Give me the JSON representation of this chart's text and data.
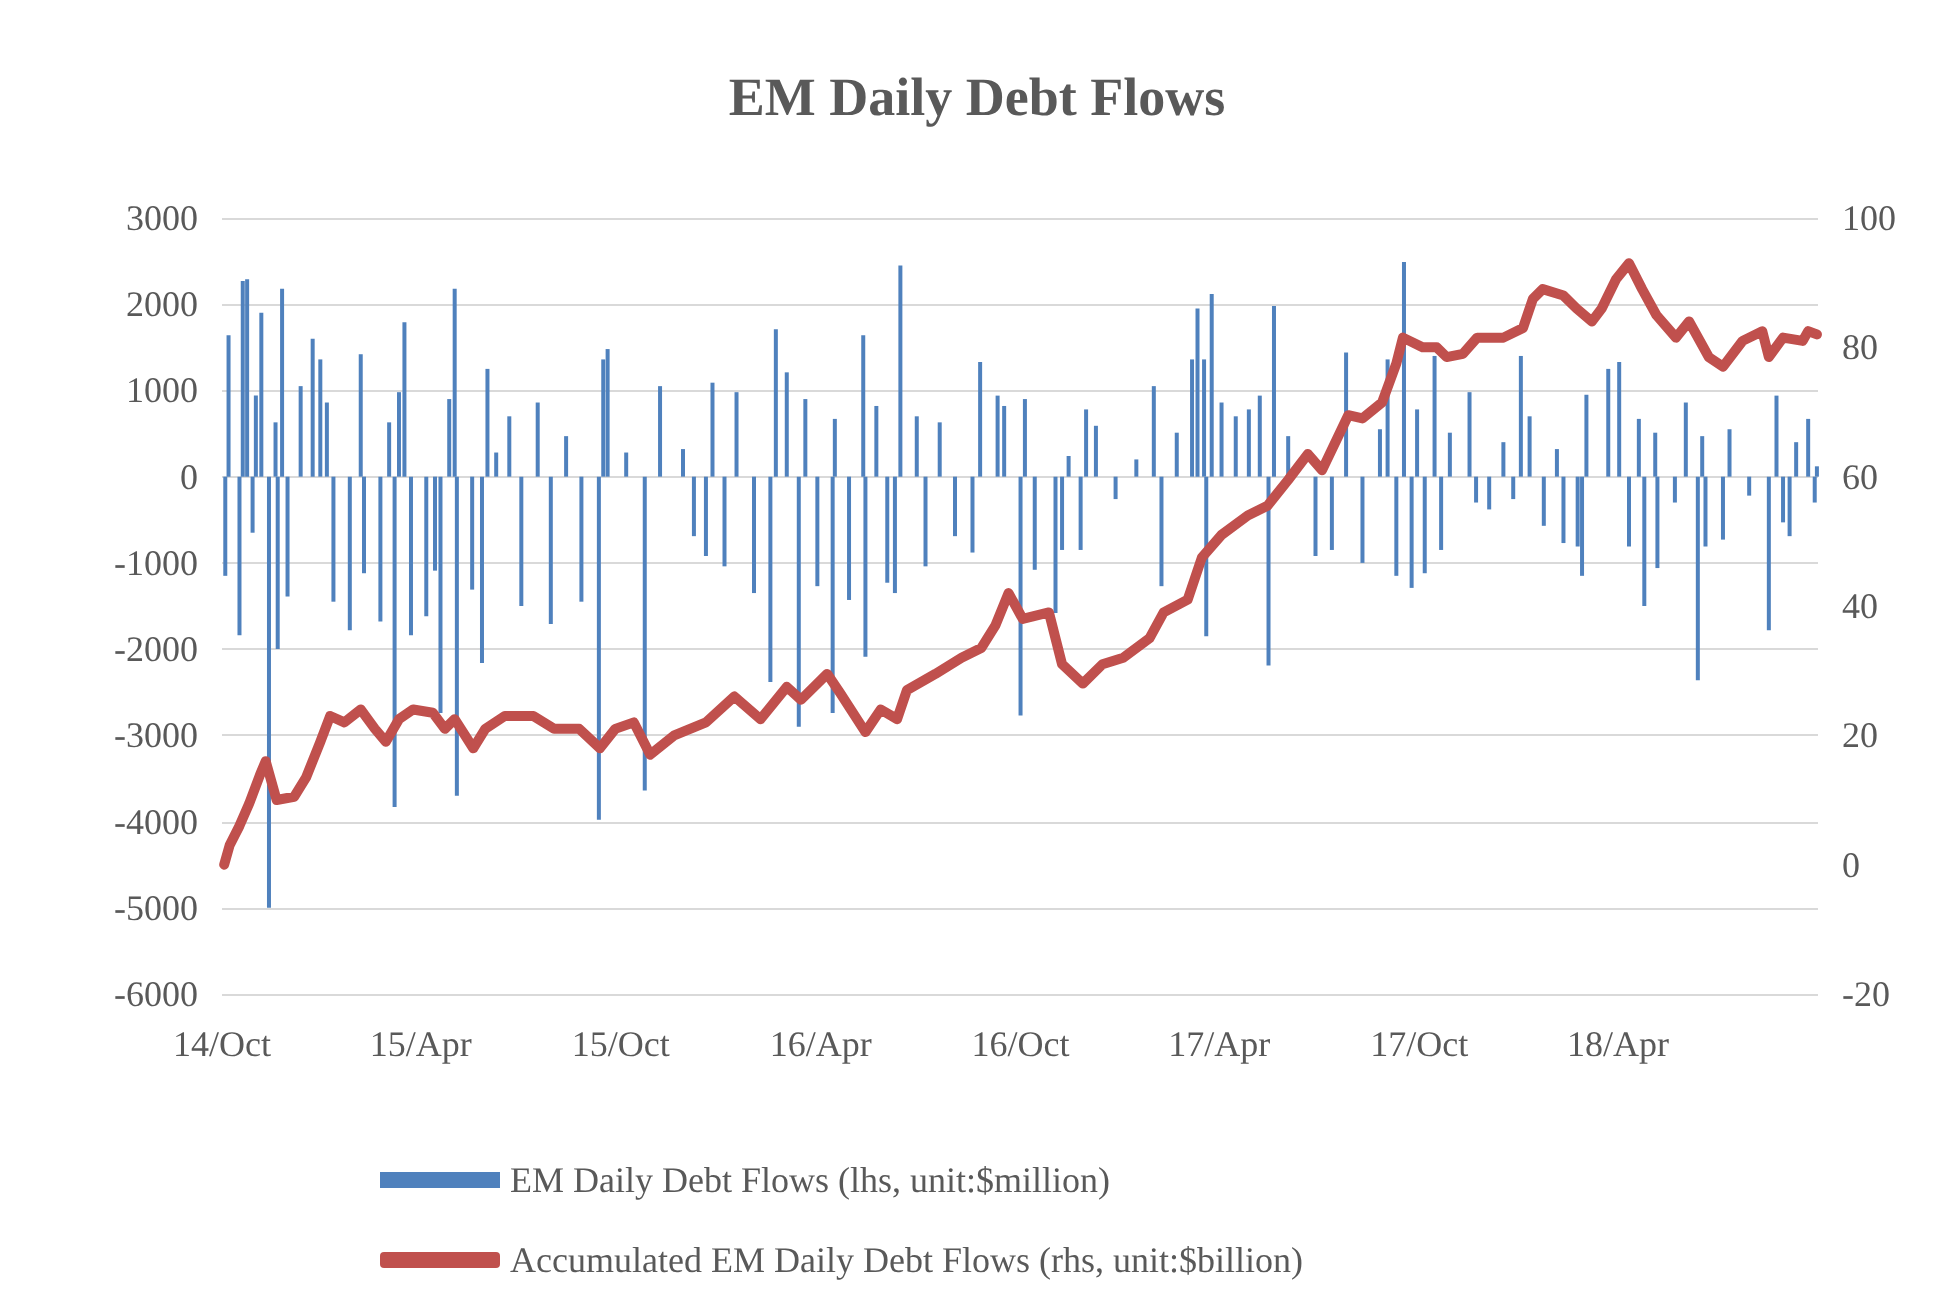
{
  "chart_data": {
    "type": "bar",
    "title": "EM Daily Debt Flows",
    "xlim": [
      "2014-10-01",
      "2018-10-01"
    ],
    "xticks": [
      {
        "value": "2014-10-01",
        "label": "14/Oct"
      },
      {
        "value": "2015-04-01",
        "label": "15/Apr"
      },
      {
        "value": "2015-10-01",
        "label": "15/Oct"
      },
      {
        "value": "2016-04-01",
        "label": "16/Apr"
      },
      {
        "value": "2016-10-01",
        "label": "16/Oct"
      },
      {
        "value": "2017-04-01",
        "label": "17/Apr"
      },
      {
        "value": "2017-10-01",
        "label": "17/Oct"
      },
      {
        "value": "2018-04-01",
        "label": "18/Apr"
      }
    ],
    "ylim": [
      -6000,
      3000
    ],
    "yticks": [
      -6000,
      -5000,
      -4000,
      -3000,
      -2000,
      -1000,
      0,
      1000,
      2000,
      3000
    ],
    "y2lim": [
      -20,
      100
    ],
    "y2ticks": [
      -20,
      0,
      20,
      40,
      60,
      80,
      100
    ],
    "grid": "y",
    "legend": "bottom",
    "marker": "none",
    "line_style": "solid",
    "series": [
      {
        "name": "EM Daily Debt Flows (lhs, unit:$million)",
        "color": "#4f81bd",
        "x": [
          "2014-10-04",
          "2014-10-07",
          "2014-10-17",
          "2014-10-20",
          "2014-10-24",
          "2014-10-29",
          "2014-11-01",
          "2014-11-06",
          "2014-11-13",
          "2014-11-19",
          "2014-11-21",
          "2014-11-25",
          "2014-11-30",
          "2014-12-12",
          "2014-12-23",
          "2014-12-30",
          "2015-01-05",
          "2015-01-11",
          "2015-01-26",
          "2015-02-05",
          "2015-02-08",
          "2015-02-23",
          "2015-03-03",
          "2015-03-08",
          "2015-03-12",
          "2015-03-17",
          "2015-03-23",
          "2015-04-06",
          "2015-04-14",
          "2015-04-19",
          "2015-04-27",
          "2015-05-02",
          "2015-05-04",
          "2015-05-18",
          "2015-05-27",
          "2015-06-01",
          "2015-06-09",
          "2015-06-21",
          "2015-07-02",
          "2015-07-17",
          "2015-07-29",
          "2015-08-12",
          "2015-08-26",
          "2015-09-11",
          "2015-09-15",
          "2015-09-19",
          "2015-10-06",
          "2015-10-23",
          "2015-11-06",
          "2015-11-27",
          "2015-12-07",
          "2015-12-18",
          "2015-12-24",
          "2016-01-04",
          "2016-01-15",
          "2016-01-31",
          "2016-02-15",
          "2016-02-20",
          "2016-03-01",
          "2016-03-12",
          "2016-03-18",
          "2016-03-29",
          "2016-04-12",
          "2016-04-14",
          "2016-04-27",
          "2016-05-10",
          "2016-05-12",
          "2016-05-22",
          "2016-06-01",
          "2016-06-08",
          "2016-06-13",
          "2016-06-28",
          "2016-07-06",
          "2016-07-19",
          "2016-08-02",
          "2016-08-18",
          "2016-08-25",
          "2016-09-10",
          "2016-09-16",
          "2016-10-01",
          "2016-10-05",
          "2016-10-14",
          "2016-11-02",
          "2016-11-08",
          "2016-11-14",
          "2016-11-25",
          "2016-11-30",
          "2016-12-09",
          "2016-12-27",
          "2017-01-15",
          "2017-01-31",
          "2017-02-07",
          "2017-02-21",
          "2017-03-07",
          "2017-03-12",
          "2017-03-18",
          "2017-03-20",
          "2017-03-25",
          "2017-04-03",
          "2017-04-16",
          "2017-04-28",
          "2017-05-08",
          "2017-05-16",
          "2017-05-21",
          "2017-06-03",
          "2017-06-28",
          "2017-07-13",
          "2017-07-26",
          "2017-08-10",
          "2017-08-26",
          "2017-09-02",
          "2017-09-10",
          "2017-09-17",
          "2017-09-24",
          "2017-09-29",
          "2017-10-06",
          "2017-10-15",
          "2017-10-21",
          "2017-10-29",
          "2017-11-16",
          "2017-11-22",
          "2017-12-04",
          "2017-12-17",
          "2017-12-26",
          "2018-01-02",
          "2018-01-10",
          "2018-01-23",
          "2018-02-04",
          "2018-02-10",
          "2018-02-23",
          "2018-02-27",
          "2018-03-03",
          "2018-03-23",
          "2018-04-02",
          "2018-04-11",
          "2018-04-20",
          "2018-04-25",
          "2018-05-05",
          "2018-05-07",
          "2018-05-23",
          "2018-06-02",
          "2018-06-13",
          "2018-06-17",
          "2018-06-20",
          "2018-07-06",
          "2018-07-12",
          "2018-07-30",
          "2018-08-17",
          "2018-08-24",
          "2018-08-30",
          "2018-09-05",
          "2018-09-11",
          "2018-09-22",
          "2018-09-28",
          "2018-09-30"
        ],
        "values": [
          -1150,
          1640,
          -1840,
          2270,
          2290,
          -650,
          940,
          1900,
          -5000,
          630,
          -2000,
          2180,
          -1390,
          1050,
          1600,
          1360,
          860,
          -1450,
          -1780,
          1420,
          -1120,
          -1680,
          630,
          -3830,
          980,
          1790,
          -1840,
          -1620,
          -1090,
          -2740,
          900,
          2180,
          -3700,
          -1310,
          -2160,
          1250,
          280,
          700,
          -1500,
          860,
          -1710,
          470,
          -1450,
          -3980,
          1360,
          1480,
          280,
          -3640,
          1050,
          320,
          -690,
          -920,
          1090,
          -1040,
          980,
          -1350,
          -2380,
          1710,
          1210,
          -2900,
          900,
          -1270,
          -2740,
          670,
          -1430,
          1640,
          -2090,
          820,
          -1230,
          -1350,
          2450,
          700,
          -1040,
          630,
          -690,
          -880,
          1330,
          940,
          820,
          -2770,
          900,
          -1080,
          -1580,
          -850,
          240,
          -850,
          780,
          590,
          -260,
          200,
          1050,
          -1270,
          510,
          1360,
          1950,
          1360,
          -1850,
          2120,
          860,
          700,
          780,
          940,
          -2190,
          1980,
          470,
          -920,
          -850,
          1440,
          -1000,
          550,
          1360,
          -1150,
          2490,
          -1290,
          780,
          -1120,
          1400,
          -850,
          510,
          980,
          -300,
          -380,
          400,
          -260,
          1400,
          700,
          -570,
          320,
          -770,
          -810,
          -1150,
          950,
          1250,
          1330,
          -810,
          670,
          -1500,
          510,
          -1060,
          -300,
          860,
          -2360,
          470,
          -810,
          -730,
          550,
          -220,
          -1780,
          940,
          -530,
          -690,
          400,
          670,
          -300,
          120
        ]
      },
      {
        "name": "Accumulated EM Daily Debt Flows (rhs, unit:$billion)",
        "type": "line",
        "axis": "y2",
        "color": "#c0504d",
        "x": [
          "2014-10-03",
          "2014-10-08",
          "2014-10-17",
          "2014-10-26",
          "2014-11-05",
          "2014-11-10",
          "2014-11-20",
          "2014-12-06",
          "2014-12-17",
          "2014-12-30",
          "2015-01-08",
          "2015-01-21",
          "2015-02-05",
          "2015-02-18",
          "2015-02-28",
          "2015-03-12",
          "2015-03-25",
          "2015-04-12",
          "2015-04-23",
          "2015-05-02",
          "2015-05-19",
          "2015-05-30",
          "2015-06-17",
          "2015-07-13",
          "2015-08-01",
          "2015-08-24",
          "2015-09-12",
          "2015-09-26",
          "2015-10-13",
          "2015-10-28",
          "2015-11-19",
          "2015-12-18",
          "2016-01-13",
          "2016-02-06",
          "2016-03-01",
          "2016-03-14",
          "2016-04-07",
          "2016-04-19",
          "2016-05-12",
          "2016-05-26",
          "2016-06-10",
          "2016-06-19",
          "2016-07-15",
          "2016-08-08",
          "2016-08-26",
          "2016-09-08",
          "2016-09-20",
          "2016-10-03",
          "2016-10-27",
          "2016-11-08",
          "2016-11-27",
          "2016-12-15",
          "2017-01-03",
          "2017-01-27",
          "2017-02-09",
          "2017-03-03",
          "2017-03-16",
          "2017-04-03",
          "2017-04-27",
          "2017-05-15",
          "2017-06-03",
          "2017-06-21",
          "2017-07-04",
          "2017-07-28",
          "2017-08-10",
          "2017-08-28",
          "2017-09-10",
          "2017-09-16",
          "2017-10-04",
          "2017-10-17",
          "2017-10-26",
          "2017-11-10",
          "2017-11-23",
          "2017-12-17",
          "2018-01-04",
          "2018-01-13",
          "2018-01-22",
          "2018-02-10",
          "2018-02-22",
          "2018-03-08",
          "2018-03-17",
          "2018-03-30",
          "2018-04-11",
          "2018-04-23",
          "2018-05-06",
          "2018-05-24",
          "2018-06-05",
          "2018-06-23",
          "2018-07-06",
          "2018-07-24",
          "2018-08-11",
          "2018-08-17",
          "2018-08-30",
          "2018-09-17",
          "2018-09-22",
          "2018-09-30"
        ],
        "values": [
          0,
          3,
          6,
          9.5,
          14,
          16,
          10,
          10.5,
          13.5,
          19,
          23,
          22,
          24,
          21,
          19,
          22.5,
          24,
          23.5,
          21,
          22.5,
          18,
          21,
          23,
          23,
          21,
          21,
          18,
          21,
          22,
          17,
          20,
          22,
          26,
          22.5,
          27.5,
          25.5,
          29.5,
          26.5,
          20.5,
          24,
          22.5,
          27,
          29.5,
          32,
          33.5,
          37,
          42,
          38,
          39,
          31,
          28,
          31,
          32,
          35,
          39,
          41,
          47.5,
          51,
          54,
          55.5,
          59.5,
          63.5,
          61,
          69.5,
          69,
          71.5,
          77.5,
          81.5,
          80,
          80,
          78.5,
          79,
          81.5,
          81.5,
          83,
          87.5,
          89,
          88,
          86,
          84,
          86,
          90.5,
          93,
          89,
          85,
          81.5,
          84,
          78.5,
          77,
          81,
          82.5,
          78.5,
          81.5,
          81,
          82.5,
          82
        ]
      }
    ]
  }
}
